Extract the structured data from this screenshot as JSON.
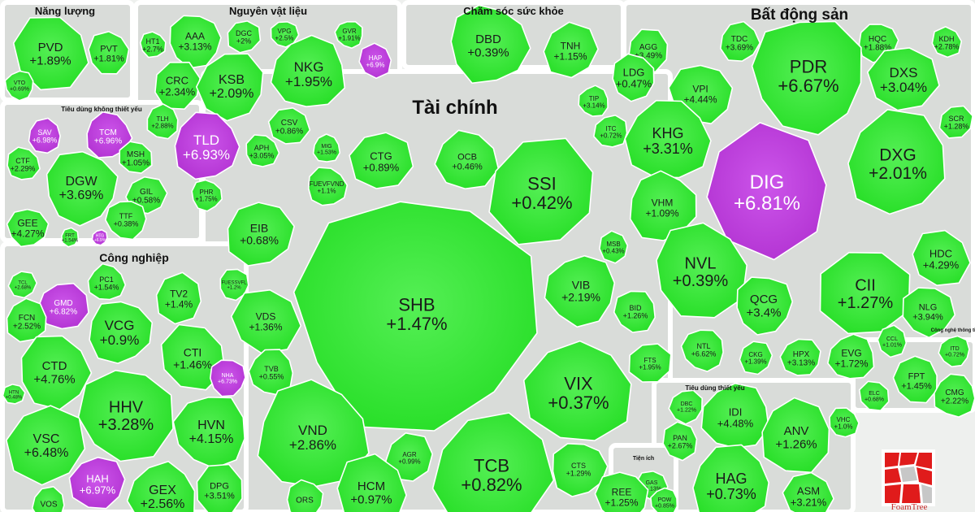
{
  "colors": {
    "up": "#22dd22",
    "up_light": "#55ef55",
    "ceiling": "#b030d0",
    "ceiling_light": "#cc55ea",
    "border": "#ffffff"
  },
  "brand": {
    "name": "FoamTree"
  },
  "chart_data": {
    "type": "treemap",
    "title": "",
    "groups": [
      {
        "name": "Năng lượng",
        "stocks": [
          {
            "s": "PVD",
            "c": "+1.89%"
          },
          {
            "s": "PVT",
            "c": "+1.81%"
          },
          {
            "s": "VTO",
            "c": "+0.69%"
          }
        ]
      },
      {
        "name": "Nguyên vật liệu",
        "stocks": [
          {
            "s": "HT1",
            "c": "+2.7%"
          },
          {
            "s": "AAA",
            "c": "+3.13%"
          },
          {
            "s": "DGC",
            "c": "+2%"
          },
          {
            "s": "VPG",
            "c": "+2.5%"
          },
          {
            "s": "GVR",
            "c": "+1.91%"
          },
          {
            "s": "CRC",
            "c": "+2.34%"
          },
          {
            "s": "KSB",
            "c": "+2.09%"
          },
          {
            "s": "NKG",
            "c": "+1.95%"
          },
          {
            "s": "HAP",
            "c": "+6.9%",
            "ceil": true
          },
          {
            "s": "TLH",
            "c": "+2.88%"
          },
          {
            "s": "TLD",
            "c": "+6.93%",
            "ceil": true
          },
          {
            "s": "CSV",
            "c": "+0.86%"
          },
          {
            "s": "APH",
            "c": "+3.05%"
          },
          {
            "s": "PHR",
            "c": "+1.75%"
          }
        ]
      },
      {
        "name": "Chăm sóc sức khỏe",
        "stocks": [
          {
            "s": "DBD",
            "c": "+0.39%"
          },
          {
            "s": "TNH",
            "c": "+1.15%"
          }
        ]
      },
      {
        "name": "Bất động sản",
        "stocks": [
          {
            "s": "AGG",
            "c": "+3.49%"
          },
          {
            "s": "TDC",
            "c": "+3.69%"
          },
          {
            "s": "HQC",
            "c": "+1.88%"
          },
          {
            "s": "KDH",
            "c": "+2.78%"
          },
          {
            "s": "LDG",
            "c": "+0.47%"
          },
          {
            "s": "PDR",
            "c": "+6.67%"
          },
          {
            "s": "DXS",
            "c": "+3.04%"
          },
          {
            "s": "VPI",
            "c": "+4.44%"
          },
          {
            "s": "TIP",
            "c": "+3.14%"
          },
          {
            "s": "SCR",
            "c": "+1.28%"
          },
          {
            "s": "ITC",
            "c": "+0.72%"
          },
          {
            "s": "KHG",
            "c": "+3.31%"
          },
          {
            "s": "DIG",
            "c": "+6.81%",
            "ceil": true
          },
          {
            "s": "DXG",
            "c": "+2.01%"
          },
          {
            "s": "VHM",
            "c": "+1.09%"
          },
          {
            "s": "HDC",
            "c": "+4.29%"
          },
          {
            "s": "NVL",
            "c": "+0.39%"
          },
          {
            "s": "QCG",
            "c": "+3.4%"
          },
          {
            "s": "CII",
            "c": "+1.27%"
          },
          {
            "s": "NLG",
            "c": "+3.94%"
          },
          {
            "s": "NTL",
            "c": "+6.62%"
          },
          {
            "s": "CKG",
            "c": "+1.39%"
          },
          {
            "s": "HPX",
            "c": "+3.13%"
          },
          {
            "s": "EVG",
            "c": "+1.72%"
          },
          {
            "s": "CCL",
            "c": "+1.01%"
          }
        ]
      },
      {
        "name": "Tiêu dùng không thiết yếu",
        "stocks": [
          {
            "s": "SAV",
            "c": "+6.98%",
            "ceil": true
          },
          {
            "s": "TCM",
            "c": "+6.96%",
            "ceil": true
          },
          {
            "s": "MSH",
            "c": "+1.05%"
          },
          {
            "s": "CTF",
            "c": "+2.29%"
          },
          {
            "s": "DGW",
            "c": "+3.69%"
          },
          {
            "s": "GIL",
            "c": "+0.58%"
          },
          {
            "s": "GEE",
            "c": "+4.27%"
          },
          {
            "s": "TTF",
            "c": "+0.38%"
          },
          {
            "s": "FRT",
            "c": "+1.54%"
          },
          {
            "s": "HTG",
            "c": "+6.9%",
            "ceil": true
          }
        ]
      },
      {
        "name": "Tài chính",
        "stocks": [
          {
            "s": "MIG",
            "c": "+1.53%"
          },
          {
            "s": "CTG",
            "c": "+0.89%"
          },
          {
            "s": "OCB",
            "c": "+0.46%"
          },
          {
            "s": "FUEVFVND",
            "c": "+1.1%"
          },
          {
            "s": "SSI",
            "c": "+0.42%"
          },
          {
            "s": "EIB",
            "c": "+0.68%"
          },
          {
            "s": "SHB",
            "c": "+1.47%"
          },
          {
            "s": "MSB",
            "c": "+0.43%"
          },
          {
            "s": "FUESSVFL",
            "c": "+1.2%"
          },
          {
            "s": "VIB",
            "c": "+2.19%"
          },
          {
            "s": "VDS",
            "c": "+1.36%"
          },
          {
            "s": "BID",
            "c": "+1.26%"
          },
          {
            "s": "TVB",
            "c": "+0.55%"
          },
          {
            "s": "FTS",
            "c": "+1.95%"
          },
          {
            "s": "VIX",
            "c": "+0.37%"
          },
          {
            "s": "VND",
            "c": "+2.86%"
          },
          {
            "s": "AGR",
            "c": "+0.99%"
          },
          {
            "s": "TCB",
            "c": "+0.82%"
          },
          {
            "s": "CTS",
            "c": "+1.29%"
          },
          {
            "s": "HCM",
            "c": "+0.97%"
          },
          {
            "s": "ORS",
            "c": ""
          }
        ]
      },
      {
        "name": "Công nghiệp",
        "stocks": [
          {
            "s": "TCL",
            "c": "+2.68%"
          },
          {
            "s": "GMD",
            "c": "+6.82%",
            "ceil": true
          },
          {
            "s": "PC1",
            "c": "+1.54%"
          },
          {
            "s": "TV2",
            "c": "+1.4%"
          },
          {
            "s": "FCN",
            "c": "+2.52%"
          },
          {
            "s": "VCG",
            "c": "+0.9%"
          },
          {
            "s": "CTI",
            "c": "+1.46%"
          },
          {
            "s": "CTD",
            "c": "+4.76%"
          },
          {
            "s": "NHA",
            "c": "+6.73%",
            "ceil": true
          },
          {
            "s": "HTN",
            "c": "+0.48%"
          },
          {
            "s": "HHV",
            "c": "+3.28%"
          },
          {
            "s": "HVN",
            "c": "+4.15%"
          },
          {
            "s": "VSC",
            "c": "+6.48%"
          },
          {
            "s": "HAH",
            "c": "+6.97%",
            "ceil": true
          },
          {
            "s": "GEX",
            "c": "+2.56%"
          },
          {
            "s": "DPG",
            "c": "+3.51%"
          },
          {
            "s": "VOS",
            "c": ""
          }
        ]
      },
      {
        "name": "Tiêu dùng thiết yếu",
        "stocks": [
          {
            "s": "DBC",
            "c": "+1.22%"
          },
          {
            "s": "IDI",
            "c": "+4.48%"
          },
          {
            "s": "PAN",
            "c": "+2.67%"
          },
          {
            "s": "ANV",
            "c": "+1.26%"
          },
          {
            "s": "HAG",
            "c": "+0.73%"
          },
          {
            "s": "ASM",
            "c": "+3.21%"
          },
          {
            "s": "VHC",
            "c": "+1.0%"
          }
        ]
      },
      {
        "name": "Công nghệ thông tin",
        "stocks": [
          {
            "s": "ITD",
            "c": "+0.72%"
          },
          {
            "s": "ELC",
            "c": "+0.68%"
          },
          {
            "s": "FPT",
            "c": "+1.45%"
          },
          {
            "s": "CMG",
            "c": "+2.22%"
          }
        ]
      },
      {
        "name": "Tiện ích",
        "stocks": [
          {
            "s": "GAS",
            "c": "+1.13%"
          },
          {
            "s": "REE",
            "c": "+1.25%"
          },
          {
            "s": "POW",
            "c": "+0.85%"
          }
        ]
      }
    ]
  }
}
